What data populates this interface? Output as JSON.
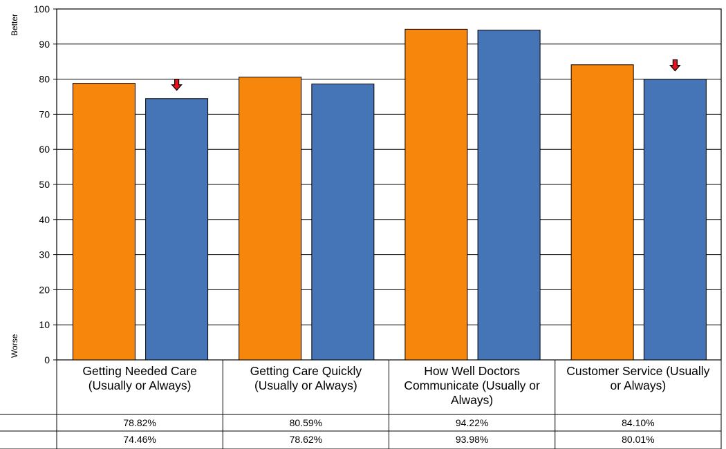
{
  "chart_data": {
    "type": "bar",
    "categories": [
      "Getting Needed Care (Usually or Always)",
      "Getting Care Quickly (Usually or Always)",
      "How Well Doctors Communicate (Usually or Always)",
      "Customer Service (Usually or Always)"
    ],
    "series": [
      {
        "values": [
          78.82,
          80.59,
          94.22,
          84.1
        ],
        "color": "#f7860c",
        "value_labels": [
          "78.82%",
          "80.59%",
          "94.22%",
          "84.10%"
        ]
      },
      {
        "values": [
          74.46,
          78.62,
          93.98,
          80.01
        ],
        "color": "#4575b6",
        "value_labels": [
          "74.46%",
          "78.62%",
          "93.98%",
          "80.01%"
        ]
      }
    ],
    "ylim": [
      0,
      100
    ],
    "y_ticks": [
      0,
      10,
      20,
      30,
      40,
      50,
      60,
      70,
      80,
      90,
      100
    ],
    "grid": true,
    "y_axis_top_label": "Better",
    "y_axis_bottom_label": "Worse",
    "down_arrow_markers": [
      {
        "category_index": 0,
        "series_index": 1
      },
      {
        "category_index": 3,
        "series_index": 1
      }
    ],
    "marker_color": "#e8121b",
    "data_table": true
  }
}
